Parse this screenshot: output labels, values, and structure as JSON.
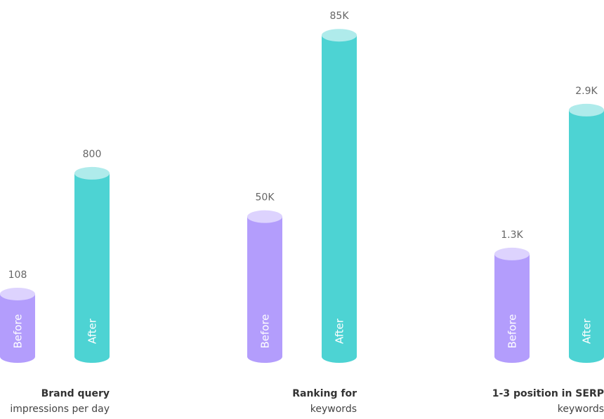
{
  "chart_data": [
    {
      "type": "bar",
      "title": "Brand query",
      "subtitle": "impressions per day",
      "categories": [
        "Before",
        "After"
      ],
      "values": [
        108,
        800
      ],
      "value_labels": [
        "108",
        "800"
      ],
      "colors": [
        "#b39dfc",
        "#4dd3d3"
      ],
      "ylim": [
        -250,
        1600
      ]
    },
    {
      "type": "bar",
      "title": "Ranking for",
      "subtitle": "keywords",
      "categories": [
        "Before",
        "After"
      ],
      "values": [
        50000,
        85000
      ],
      "value_labels": [
        "50K",
        "85K"
      ],
      "colors": [
        "#b39dfc",
        "#4dd3d3"
      ],
      "ylim": [
        23000,
        85300
      ]
    },
    {
      "type": "bar",
      "title": "1-3 position in SERP",
      "subtitle": "keywords",
      "categories": [
        "Before",
        "After"
      ],
      "values": [
        1300,
        2900
      ],
      "value_labels": [
        "1.3K",
        "2.9K"
      ],
      "colors": [
        "#b39dfc",
        "#4dd3d3"
      ],
      "ylim": [
        160,
        3750
      ]
    }
  ]
}
